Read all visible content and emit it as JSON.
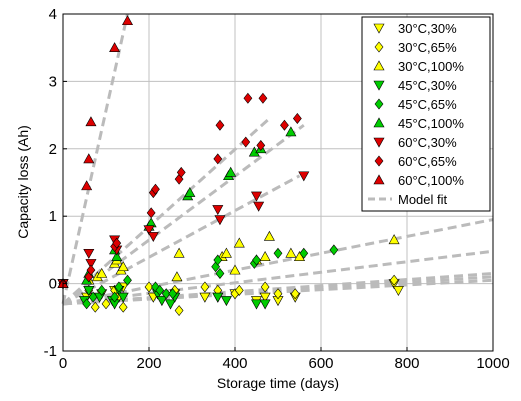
{
  "chart_data": {
    "type": "scatter",
    "title": "",
    "xlabel": "Storage time (days)",
    "ylabel": "Capacity loss (Ah)",
    "xlim": [
      0,
      1000
    ],
    "ylim": [
      -1,
      4
    ],
    "xticks": [
      "0",
      "200",
      "400",
      "600",
      "800",
      "1000"
    ],
    "yticks": [
      "-1",
      "0",
      "1",
      "2",
      "3",
      "4"
    ],
    "grid": true,
    "legend_position": "top-right",
    "series": [
      {
        "name": "30°C,30%",
        "marker": "triangle-down",
        "color": "#ffff00",
        "points": [
          [
            0,
            0
          ],
          [
            55,
            -0.2
          ],
          [
            60,
            -0.1
          ],
          [
            90,
            -0.15
          ],
          [
            120,
            -0.1
          ],
          [
            130,
            -0.2
          ],
          [
            140,
            -0.05
          ],
          [
            210,
            -0.2
          ],
          [
            220,
            -0.15
          ],
          [
            260,
            -0.15
          ],
          [
            330,
            -0.2
          ],
          [
            360,
            -0.2
          ],
          [
            400,
            -0.15
          ],
          [
            450,
            -0.25
          ],
          [
            470,
            -0.2
          ],
          [
            500,
            -0.25
          ],
          [
            540,
            -0.2
          ],
          [
            770,
            0.0
          ],
          [
            780,
            -0.1
          ]
        ]
      },
      {
        "name": "30°C,65%",
        "marker": "diamond",
        "color": "#ffff00",
        "points": [
          [
            0,
            0
          ],
          [
            60,
            -0.1
          ],
          [
            75,
            -0.35
          ],
          [
            100,
            -0.3
          ],
          [
            120,
            -0.1
          ],
          [
            140,
            -0.35
          ],
          [
            200,
            -0.05
          ],
          [
            220,
            -0.1
          ],
          [
            260,
            -0.1
          ],
          [
            270,
            -0.4
          ],
          [
            330,
            -0.05
          ],
          [
            360,
            -0.1
          ],
          [
            400,
            -0.15
          ],
          [
            410,
            -0.1
          ],
          [
            470,
            -0.05
          ],
          [
            500,
            -0.15
          ],
          [
            540,
            -0.15
          ],
          [
            770,
            0.05
          ]
        ]
      },
      {
        "name": "30°C,100%",
        "marker": "triangle-up",
        "color": "#ffff00",
        "points": [
          [
            0,
            0
          ],
          [
            60,
            0.05
          ],
          [
            80,
            0.1
          ],
          [
            90,
            0.15
          ],
          [
            120,
            0.3
          ],
          [
            125,
            0.35
          ],
          [
            135,
            0.2
          ],
          [
            140,
            0.25
          ],
          [
            265,
            0.1
          ],
          [
            270,
            0.45
          ],
          [
            370,
            0.4
          ],
          [
            380,
            0.45
          ],
          [
            400,
            0.2
          ],
          [
            410,
            0.6
          ],
          [
            450,
            0.35
          ],
          [
            470,
            0.4
          ],
          [
            480,
            0.7
          ],
          [
            530,
            0.45
          ],
          [
            550,
            0.4
          ],
          [
            770,
            0.65
          ]
        ]
      },
      {
        "name": "45°C,30%",
        "marker": "triangle-down",
        "color": "#00cc00",
        "points": [
          [
            0,
            0
          ],
          [
            50,
            -0.25
          ],
          [
            60,
            -0.1
          ],
          [
            85,
            -0.2
          ],
          [
            115,
            -0.25
          ],
          [
            120,
            -0.3
          ],
          [
            130,
            -0.1
          ],
          [
            140,
            -0.2
          ],
          [
            220,
            -0.15
          ],
          [
            230,
            -0.25
          ],
          [
            250,
            -0.3
          ],
          [
            260,
            -0.2
          ],
          [
            360,
            -0.2
          ],
          [
            380,
            -0.25
          ],
          [
            450,
            -0.3
          ],
          [
            470,
            -0.3
          ]
        ]
      },
      {
        "name": "45°C,65%",
        "marker": "diamond",
        "color": "#00cc00",
        "points": [
          [
            0,
            0
          ],
          [
            55,
            -0.3
          ],
          [
            70,
            -0.2
          ],
          [
            90,
            -0.1
          ],
          [
            120,
            -0.2
          ],
          [
            130,
            -0.05
          ],
          [
            150,
            0.05
          ],
          [
            215,
            -0.05
          ],
          [
            225,
            -0.1
          ],
          [
            240,
            -0.15
          ],
          [
            255,
            -0.15
          ],
          [
            355,
            0.25
          ],
          [
            360,
            0.35
          ],
          [
            365,
            0.15
          ],
          [
            445,
            0.3
          ],
          [
            450,
            0.35
          ],
          [
            500,
            0.45
          ],
          [
            560,
            0.45
          ],
          [
            630,
            0.5
          ]
        ]
      },
      {
        "name": "45°C,100%",
        "marker": "triangle-up",
        "color": "#00cc00",
        "points": [
          [
            0,
            0
          ],
          [
            55,
            0.05
          ],
          [
            60,
            0.15
          ],
          [
            120,
            0.5
          ],
          [
            125,
            0.4
          ],
          [
            200,
            0.85
          ],
          [
            205,
            0.9
          ],
          [
            290,
            1.3
          ],
          [
            295,
            1.35
          ],
          [
            385,
            1.6
          ],
          [
            390,
            1.65
          ],
          [
            445,
            1.95
          ],
          [
            460,
            2.0
          ],
          [
            530,
            2.25
          ]
        ]
      },
      {
        "name": "60°C,30%",
        "marker": "triangle-down",
        "color": "#dd0000",
        "points": [
          [
            0,
            0
          ],
          [
            60,
            0.45
          ],
          [
            65,
            0.3
          ],
          [
            120,
            0.65
          ],
          [
            125,
            0.5
          ],
          [
            200,
            0.8
          ],
          [
            210,
            0.7
          ],
          [
            360,
            1.1
          ],
          [
            365,
            0.95
          ],
          [
            450,
            1.3
          ],
          [
            455,
            1.15
          ],
          [
            560,
            1.6
          ]
        ]
      },
      {
        "name": "60°C,65%",
        "marker": "diamond",
        "color": "#dd0000",
        "points": [
          [
            0,
            0
          ],
          [
            60,
            0.1
          ],
          [
            65,
            0.2
          ],
          [
            120,
            0.55
          ],
          [
            125,
            0.6
          ],
          [
            205,
            1.05
          ],
          [
            210,
            1.35
          ],
          [
            215,
            1.4
          ],
          [
            270,
            1.55
          ],
          [
            275,
            1.65
          ],
          [
            360,
            1.85
          ],
          [
            365,
            2.35
          ],
          [
            425,
            2.1
          ],
          [
            430,
            2.75
          ],
          [
            460,
            2.05
          ],
          [
            465,
            2.75
          ],
          [
            515,
            2.35
          ],
          [
            545,
            2.45
          ]
        ]
      },
      {
        "name": "60°C,100%",
        "marker": "triangle-up",
        "color": "#dd0000",
        "points": [
          [
            0,
            0
          ],
          [
            55,
            1.45
          ],
          [
            60,
            1.85
          ],
          [
            65,
            2.4
          ],
          [
            120,
            3.5
          ],
          [
            150,
            3.9
          ]
        ]
      }
    ],
    "model_fit": {
      "name": "Model fit",
      "color": "#bbbbbb",
      "origin": [
        0,
        -0.3
      ],
      "lines": [
        {
          "end": [
            150,
            4.0
          ]
        },
        {
          "end": [
            480,
            2.45
          ]
        },
        {
          "end": [
            560,
            2.35
          ]
        },
        {
          "end": [
            550,
            1.6
          ]
        },
        {
          "end": [
            1000,
            0.95
          ]
        },
        {
          "end": [
            1000,
            0.48
          ]
        },
        {
          "end": [
            1000,
            0.15
          ]
        },
        {
          "end": [
            1000,
            0.1
          ]
        },
        {
          "end": [
            1000,
            0.05
          ]
        }
      ]
    }
  }
}
